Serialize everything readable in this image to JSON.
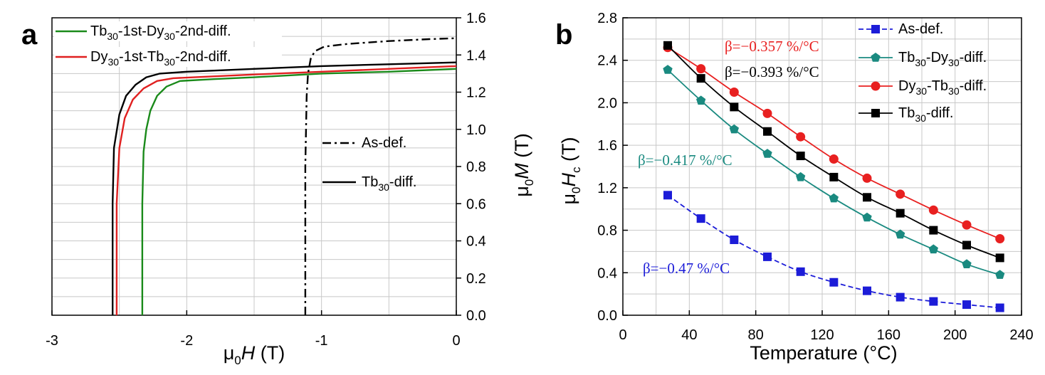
{
  "chart_data": [
    {
      "panel_label": "a",
      "type": "line",
      "xlabel": {
        "main": "μ",
        "sub": "0",
        "var": "H",
        "unit": " (T)"
      },
      "ylabel": {
        "main": "μ",
        "sub": "0",
        "var": "M",
        "unit": " (T)"
      },
      "xlim": [
        -3,
        0
      ],
      "ylim": [
        0,
        1.6
      ],
      "y_axis_side": "right",
      "xticks": [
        "-3",
        "-2",
        "-1",
        "0"
      ],
      "yticks": [
        "0.0",
        "0.2",
        "0.4",
        "0.6",
        "0.8",
        "1.0",
        "1.2",
        "1.4",
        "1.6"
      ],
      "grid": true,
      "series": [
        {
          "name": "Tb30-1st-Dy30-2nd-diff.",
          "label_parts": [
            "Tb",
            "30",
            "-1st-Dy",
            "30",
            "-2nd-diff."
          ],
          "color": "#1a8a1a",
          "style": "solid",
          "points": [
            [
              -2.33,
              0.0
            ],
            [
              -2.33,
              0.6
            ],
            [
              -2.32,
              0.88
            ],
            [
              -2.3,
              1.0
            ],
            [
              -2.27,
              1.1
            ],
            [
              -2.22,
              1.18
            ],
            [
              -2.15,
              1.23
            ],
            [
              -2.05,
              1.26
            ],
            [
              -1.8,
              1.27
            ],
            [
              -1.5,
              1.28
            ],
            [
              -1.0,
              1.3
            ],
            [
              -0.5,
              1.31
            ],
            [
              0.0,
              1.325
            ]
          ]
        },
        {
          "name": "Dy30-1st-Tb30-2nd-diff.",
          "label_parts": [
            "Dy",
            "30",
            "-1st-Tb",
            "30",
            "-2nd-diff."
          ],
          "color": "#e02020",
          "style": "solid",
          "points": [
            [
              -2.52,
              0.0
            ],
            [
              -2.52,
              0.6
            ],
            [
              -2.5,
              0.9
            ],
            [
              -2.46,
              1.06
            ],
            [
              -2.4,
              1.16
            ],
            [
              -2.32,
              1.22
            ],
            [
              -2.22,
              1.26
            ],
            [
              -2.1,
              1.275
            ],
            [
              -1.8,
              1.285
            ],
            [
              -1.5,
              1.295
            ],
            [
              -1.0,
              1.31
            ],
            [
              -0.5,
              1.325
            ],
            [
              0.0,
              1.34
            ]
          ]
        },
        {
          "name": "As-def.",
          "color": "#000000",
          "style": "dashdot",
          "points": [
            [
              -1.12,
              0.0
            ],
            [
              -1.12,
              0.8
            ],
            [
              -1.11,
              1.18
            ],
            [
              -1.1,
              1.3
            ],
            [
              -1.08,
              1.38
            ],
            [
              -1.05,
              1.42
            ],
            [
              -0.98,
              1.445
            ],
            [
              -0.8,
              1.46
            ],
            [
              -0.5,
              1.475
            ],
            [
              -0.2,
              1.485
            ],
            [
              0.0,
              1.49
            ]
          ]
        },
        {
          "name": "Tb30-diff.",
          "label_parts": [
            "Tb",
            "30",
            "-diff."
          ],
          "color": "#000000",
          "style": "solid",
          "points": [
            [
              -2.55,
              0.0
            ],
            [
              -2.55,
              0.6
            ],
            [
              -2.54,
              0.9
            ],
            [
              -2.5,
              1.08
            ],
            [
              -2.45,
              1.18
            ],
            [
              -2.38,
              1.24
            ],
            [
              -2.3,
              1.28
            ],
            [
              -2.2,
              1.3
            ],
            [
              -2.0,
              1.31
            ],
            [
              -1.5,
              1.325
            ],
            [
              -1.0,
              1.34
            ],
            [
              -0.5,
              1.35
            ],
            [
              0.0,
              1.36
            ]
          ]
        }
      ]
    },
    {
      "panel_label": "b",
      "type": "line",
      "xlabel": "Temperature (°C)",
      "ylabel": {
        "main": "μ",
        "sub": "0",
        "var": "H",
        "varsub": "c",
        "unit": " (T)"
      },
      "xlim": [
        0,
        240
      ],
      "ylim": [
        0.0,
        2.8
      ],
      "xticks": [
        "0",
        "40",
        "80",
        "120",
        "160",
        "200",
        "240"
      ],
      "yticks": [
        "0.0",
        "0.4",
        "0.8",
        "1.2",
        "1.6",
        "2.0",
        "2.4",
        "2.8"
      ],
      "grid": true,
      "x": [
        27,
        47,
        67,
        87,
        107,
        127,
        147,
        167,
        187,
        207,
        227
      ],
      "series": [
        {
          "name": "As-def.",
          "color": "#1c1cd8",
          "marker": "square",
          "style": "dashed",
          "values": [
            1.13,
            0.91,
            0.71,
            0.55,
            0.41,
            0.31,
            0.23,
            0.17,
            0.13,
            0.1,
            0.07
          ]
        },
        {
          "name": "Tb30-Dy30-diff.",
          "label_parts": [
            "Tb",
            "30",
            "-Dy",
            "30",
            "-diff."
          ],
          "color": "#1a8a80",
          "marker": "pentagon",
          "style": "solid",
          "values": [
            2.31,
            2.02,
            1.75,
            1.52,
            1.3,
            1.1,
            0.92,
            0.76,
            0.62,
            0.48,
            0.38
          ]
        },
        {
          "name": "Dy30-Tb30-diff.",
          "label_parts": [
            "Dy",
            "30",
            "-Tb",
            "30",
            "-diff."
          ],
          "color": "#e82020",
          "marker": "circle",
          "style": "solid",
          "values": [
            2.52,
            2.32,
            2.1,
            1.9,
            1.68,
            1.47,
            1.29,
            1.14,
            0.99,
            0.85,
            0.72
          ]
        },
        {
          "name": "Tb30-diff.",
          "label_parts": [
            "Tb",
            "30",
            "-diff."
          ],
          "color": "#000000",
          "marker": "square",
          "style": "solid",
          "values": [
            2.54,
            2.23,
            1.96,
            1.73,
            1.5,
            1.3,
            1.11,
            0.96,
            0.8,
            0.66,
            0.54
          ]
        }
      ],
      "annotations": [
        {
          "text": "β=−0.357 %/°C",
          "color": "#e82020"
        },
        {
          "text": "β=−0.393 %/°C",
          "color": "#000000"
        },
        {
          "text": "β=−0.417 %/°C",
          "color": "#1a8a80"
        },
        {
          "text": "β=−0.47 %/°C",
          "color": "#1c1cd8"
        }
      ]
    }
  ]
}
